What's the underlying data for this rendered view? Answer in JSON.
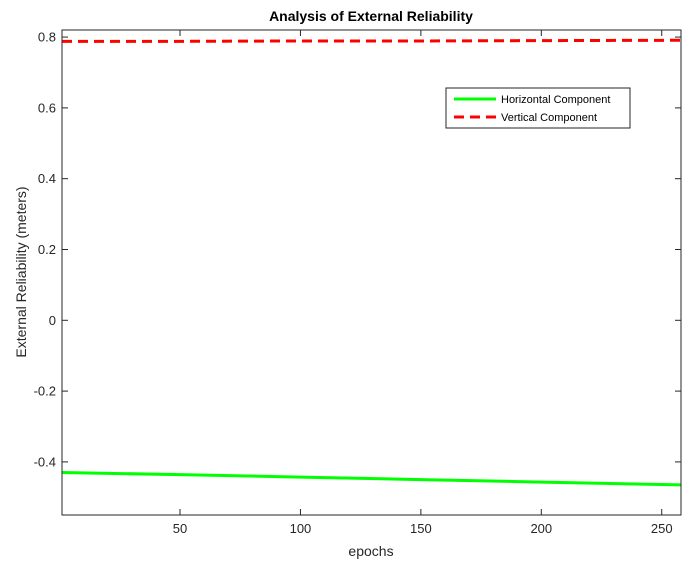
{
  "chart_data": {
    "type": "line",
    "title": "Analysis of External Reliability",
    "xlabel": "epochs",
    "ylabel": "External Reliability (meters)",
    "xlim": [
      1,
      258
    ],
    "ylim": [
      -0.55,
      0.82
    ],
    "xticks": [
      50,
      100,
      150,
      200,
      250
    ],
    "xtick_labels": [
      "50",
      "100",
      "150",
      "200",
      "250"
    ],
    "yticks": [
      -0.4,
      -0.2,
      0,
      0.2,
      0.4,
      0.6,
      0.8
    ],
    "ytick_labels": [
      "-0.4",
      "-0.2",
      "0",
      "0.2",
      "0.4",
      "0.6",
      "0.8"
    ],
    "grid": false,
    "legend_position": "top-right",
    "series": [
      {
        "name": "Horizontal Component",
        "color": "#00ff00",
        "style": "solid",
        "x": [
          1,
          50,
          100,
          150,
          200,
          258
        ],
        "y": [
          -0.43,
          -0.436,
          -0.443,
          -0.45,
          -0.457,
          -0.465
        ]
      },
      {
        "name": "Vertical Component",
        "color": "#ff0000",
        "style": "dashed",
        "x": [
          1,
          50,
          100,
          150,
          200,
          258
        ],
        "y": [
          0.788,
          0.788,
          0.789,
          0.789,
          0.79,
          0.791
        ]
      }
    ]
  }
}
